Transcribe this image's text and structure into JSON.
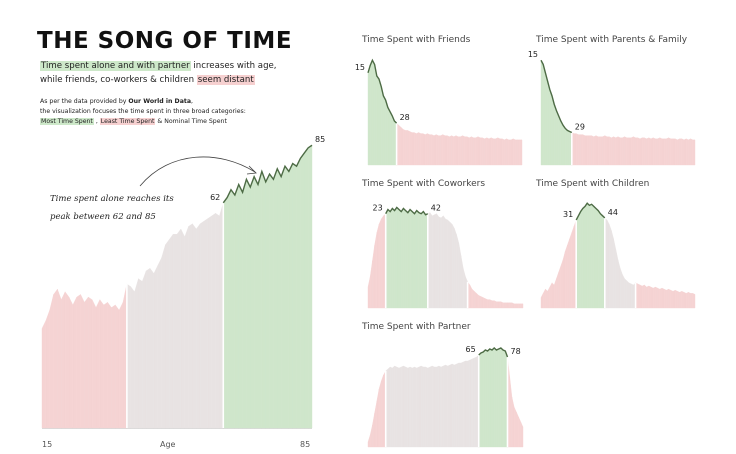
{
  "header": {
    "title": "THE SONG OF TIME",
    "subtitle_part1": "Time spent alone and with partner",
    "subtitle_part2": " increases with age,",
    "subtitle_part3": "while friends, co-workers & children ",
    "subtitle_part4": "seem distant",
    "note_line1_pre": "As per the data provided by ",
    "note_line1_bold": "Our World in Data",
    "note_line1_post": ",",
    "note_line2": "the visualization focuses the time spent in three broad categories:",
    "note_cat1": "Most Time Spent",
    "note_sep1": " , ",
    "note_cat2": "Least Time Spent",
    "note_sep2": " & Nominal Time Spent"
  },
  "annotation": {
    "line1": "Time spent alone reaches its",
    "line2": "peak between 62 and 85"
  },
  "colors": {
    "most": "#cfe6cb",
    "least": "#f5d3d3",
    "nominal": "#e8e3e3",
    "line": "#4d6b45"
  },
  "chart_data": [
    {
      "id": "alone",
      "type": "area",
      "title": "",
      "xlabel": "Age",
      "x_ticks": [
        "15",
        "85"
      ],
      "xlim": [
        15,
        85
      ],
      "segments": [
        {
          "category": "least",
          "from": 15,
          "to": 37
        },
        {
          "category": "nominal",
          "from": 37,
          "to": 62
        },
        {
          "category": "most",
          "from": 62,
          "to": 85
        }
      ],
      "labels": [
        {
          "age": 62,
          "text": "62"
        },
        {
          "age": 85,
          "text": "85"
        }
      ],
      "x": [
        15,
        16,
        17,
        18,
        19,
        20,
        21,
        22,
        23,
        24,
        25,
        26,
        27,
        28,
        29,
        30,
        31,
        32,
        33,
        34,
        35,
        36,
        37,
        38,
        39,
        40,
        41,
        42,
        43,
        44,
        45,
        46,
        47,
        48,
        49,
        50,
        51,
        52,
        53,
        54,
        55,
        56,
        57,
        58,
        59,
        60,
        61,
        62,
        63,
        64,
        65,
        66,
        67,
        68,
        69,
        70,
        71,
        72,
        73,
        74,
        75,
        76,
        77,
        78,
        79,
        80,
        81,
        82,
        83,
        84,
        85
      ],
      "y": [
        38,
        41,
        45,
        51,
        53,
        49,
        52,
        50,
        47,
        50,
        51,
        48,
        50,
        49,
        46,
        49,
        47,
        48,
        46,
        47,
        45,
        48,
        55,
        54,
        52,
        57,
        56,
        60,
        61,
        59,
        62,
        65,
        70,
        72,
        74,
        74,
        76,
        73,
        77,
        78,
        76,
        78,
        79,
        80,
        81,
        82,
        81,
        86,
        88,
        91,
        89,
        93,
        90,
        95,
        92,
        96,
        93,
        98,
        94,
        97,
        95,
        99,
        96,
        100,
        98,
        101,
        100,
        103,
        105,
        107,
        108
      ]
    },
    {
      "id": "friends",
      "type": "area",
      "title": "Time Spent with Friends",
      "xlim": [
        15,
        85
      ],
      "segments": [
        {
          "category": "most",
          "from": 15,
          "to": 28
        },
        {
          "category": "least",
          "from": 28,
          "to": 85
        }
      ],
      "labels": [
        {
          "age": 15,
          "text": "15"
        },
        {
          "age": 28,
          "text": "28"
        }
      ],
      "x": [
        15,
        16,
        17,
        18,
        19,
        20,
        21,
        22,
        23,
        24,
        25,
        26,
        27,
        28,
        29,
        30,
        31,
        32,
        33,
        34,
        35,
        36,
        37,
        38,
        39,
        40,
        41,
        42,
        43,
        44,
        45,
        46,
        47,
        48,
        49,
        50,
        51,
        52,
        53,
        54,
        55,
        56,
        57,
        58,
        59,
        60,
        61,
        62,
        63,
        64,
        65,
        66,
        67,
        68,
        69,
        70,
        71,
        72,
        73,
        74,
        75,
        76,
        77,
        78,
        79,
        80,
        81,
        82,
        83,
        84,
        85
      ],
      "y": [
        88,
        95,
        100,
        96,
        85,
        82,
        75,
        66,
        62,
        55,
        51,
        47,
        42,
        40,
        38,
        36,
        34,
        33,
        33,
        32,
        31,
        31,
        30,
        31,
        30,
        30,
        29,
        30,
        29,
        29,
        28,
        29,
        28,
        28,
        29,
        28,
        28,
        27,
        28,
        27,
        28,
        27,
        27,
        28,
        27,
        27,
        26,
        27,
        26,
        26,
        27,
        26,
        26,
        25,
        26,
        25,
        26,
        25,
        25,
        26,
        25,
        25,
        24,
        25,
        24,
        24,
        25,
        24,
        24,
        24,
        24
      ]
    },
    {
      "id": "family",
      "type": "area",
      "title": "Time Spent with Parents & Family",
      "xlim": [
        15,
        85
      ],
      "segments": [
        {
          "category": "most",
          "from": 15,
          "to": 29
        },
        {
          "category": "least",
          "from": 29,
          "to": 85
        }
      ],
      "labels": [
        {
          "age": 15,
          "text": "15"
        },
        {
          "age": 29,
          "text": "29"
        }
      ],
      "x": [
        15,
        16,
        17,
        18,
        19,
        20,
        21,
        22,
        23,
        24,
        25,
        26,
        27,
        28,
        29,
        30,
        31,
        32,
        33,
        34,
        35,
        36,
        37,
        38,
        39,
        40,
        41,
        42,
        43,
        44,
        45,
        46,
        47,
        48,
        49,
        50,
        51,
        52,
        53,
        54,
        55,
        56,
        57,
        58,
        59,
        60,
        61,
        62,
        63,
        64,
        65,
        66,
        67,
        68,
        69,
        70,
        71,
        72,
        73,
        74,
        75,
        76,
        77,
        78,
        79,
        80,
        81,
        82,
        83,
        84,
        85
      ],
      "y": [
        100,
        96,
        88,
        80,
        72,
        66,
        58,
        52,
        47,
        42,
        38,
        35,
        33,
        32,
        31,
        30,
        30,
        29,
        29,
        29,
        28,
        28,
        28,
        28,
        27,
        28,
        27,
        27,
        27,
        28,
        27,
        27,
        26,
        27,
        26,
        27,
        26,
        26,
        27,
        26,
        26,
        26,
        27,
        26,
        26,
        25,
        26,
        26,
        25,
        26,
        25,
        26,
        25,
        25,
        26,
        25,
        25,
        25,
        26,
        25,
        25,
        25,
        24,
        25,
        25,
        24,
        25,
        24,
        25,
        24,
        24
      ]
    },
    {
      "id": "coworkers",
      "type": "area",
      "title": "Time Spent with Coworkers",
      "xlim": [
        15,
        85
      ],
      "segments": [
        {
          "category": "least",
          "from": 15,
          "to": 23
        },
        {
          "category": "most",
          "from": 23,
          "to": 42
        },
        {
          "category": "nominal",
          "from": 42,
          "to": 60
        },
        {
          "category": "least",
          "from": 60,
          "to": 85
        }
      ],
      "labels": [
        {
          "age": 23,
          "text": "23"
        },
        {
          "age": 42,
          "text": "42"
        }
      ],
      "x": [
        15,
        16,
        17,
        18,
        19,
        20,
        21,
        22,
        23,
        24,
        25,
        26,
        27,
        28,
        29,
        30,
        31,
        32,
        33,
        34,
        35,
        36,
        37,
        38,
        39,
        40,
        41,
        42,
        43,
        44,
        45,
        46,
        47,
        48,
        49,
        50,
        51,
        52,
        53,
        54,
        55,
        56,
        57,
        58,
        59,
        60,
        61,
        62,
        63,
        64,
        65,
        66,
        67,
        68,
        69,
        70,
        71,
        72,
        73,
        74,
        75,
        76,
        77,
        78,
        79,
        80,
        81,
        82,
        83,
        84,
        85
      ],
      "y": [
        20,
        30,
        45,
        60,
        72,
        80,
        85,
        88,
        90,
        94,
        92,
        95,
        93,
        96,
        94,
        92,
        95,
        93,
        91,
        94,
        92,
        90,
        93,
        91,
        90,
        92,
        89,
        90,
        91,
        88,
        89,
        90,
        87,
        86,
        88,
        85,
        84,
        82,
        80,
        76,
        70,
        62,
        50,
        38,
        30,
        25,
        22,
        18,
        16,
        14,
        12,
        11,
        10,
        9,
        8,
        8,
        7,
        7,
        6,
        6,
        6,
        5,
        5,
        5,
        5,
        5,
        4,
        4,
        4,
        4,
        4
      ]
    },
    {
      "id": "children",
      "type": "area",
      "title": "Time Spent with Children",
      "xlim": [
        15,
        85
      ],
      "segments": [
        {
          "category": "least",
          "from": 15,
          "to": 31
        },
        {
          "category": "most",
          "from": 31,
          "to": 44
        },
        {
          "category": "nominal",
          "from": 44,
          "to": 58
        },
        {
          "category": "least",
          "from": 58,
          "to": 85
        }
      ],
      "labels": [
        {
          "age": 31,
          "text": "31"
        },
        {
          "age": 44,
          "text": "44"
        }
      ],
      "x": [
        15,
        16,
        17,
        18,
        19,
        20,
        21,
        22,
        23,
        24,
        25,
        26,
        27,
        28,
        29,
        30,
        31,
        32,
        33,
        34,
        35,
        36,
        37,
        38,
        39,
        40,
        41,
        42,
        43,
        44,
        45,
        46,
        47,
        48,
        49,
        50,
        51,
        52,
        53,
        54,
        55,
        56,
        57,
        58,
        59,
        60,
        61,
        62,
        63,
        64,
        65,
        66,
        67,
        68,
        69,
        70,
        71,
        72,
        73,
        74,
        75,
        76,
        77,
        78,
        79,
        80,
        81,
        82,
        83,
        84,
        85
      ],
      "y": [
        10,
        14,
        18,
        16,
        20,
        24,
        22,
        28,
        34,
        40,
        46,
        54,
        60,
        66,
        72,
        78,
        84,
        88,
        92,
        95,
        97,
        100,
        98,
        99,
        97,
        95,
        93,
        90,
        88,
        86,
        84,
        80,
        74,
        66,
        56,
        46,
        38,
        32,
        28,
        26,
        24,
        23,
        22,
        24,
        23,
        22,
        21,
        22,
        20,
        21,
        20,
        19,
        20,
        19,
        18,
        19,
        18,
        17,
        18,
        17,
        16,
        17,
        16,
        15,
        16,
        15,
        14,
        15,
        14,
        14,
        13
      ]
    },
    {
      "id": "partner",
      "type": "area",
      "title": "Time Spent with Partner",
      "xlim": [
        15,
        85
      ],
      "segments": [
        {
          "category": "least",
          "from": 15,
          "to": 23
        },
        {
          "category": "nominal",
          "from": 23,
          "to": 65
        },
        {
          "category": "most",
          "from": 65,
          "to": 78
        },
        {
          "category": "least",
          "from": 78,
          "to": 85
        }
      ],
      "labels": [
        {
          "age": 65,
          "text": "65"
        },
        {
          "age": 78,
          "text": "78"
        }
      ],
      "x": [
        15,
        16,
        17,
        18,
        19,
        20,
        21,
        22,
        23,
        24,
        25,
        26,
        27,
        28,
        29,
        30,
        31,
        32,
        33,
        34,
        35,
        36,
        37,
        38,
        39,
        40,
        41,
        42,
        43,
        44,
        45,
        46,
        47,
        48,
        49,
        50,
        51,
        52,
        53,
        54,
        55,
        56,
        57,
        58,
        59,
        60,
        61,
        62,
        63,
        64,
        65,
        66,
        67,
        68,
        69,
        70,
        71,
        72,
        73,
        74,
        75,
        76,
        77,
        78,
        79,
        80,
        81,
        82,
        83,
        84,
        85
      ],
      "y": [
        5,
        12,
        22,
        34,
        46,
        58,
        66,
        72,
        76,
        78,
        80,
        79,
        81,
        80,
        79,
        80,
        81,
        80,
        79,
        80,
        79,
        80,
        79,
        80,
        81,
        80,
        80,
        79,
        80,
        81,
        80,
        80,
        81,
        80,
        81,
        82,
        81,
        82,
        83,
        82,
        83,
        84,
        84,
        85,
        86,
        86,
        87,
        88,
        89,
        90,
        92,
        94,
        95,
        97,
        96,
        98,
        97,
        99,
        97,
        98,
        99,
        97,
        96,
        90,
        70,
        50,
        40,
        35,
        30,
        25,
        20
      ]
    }
  ]
}
